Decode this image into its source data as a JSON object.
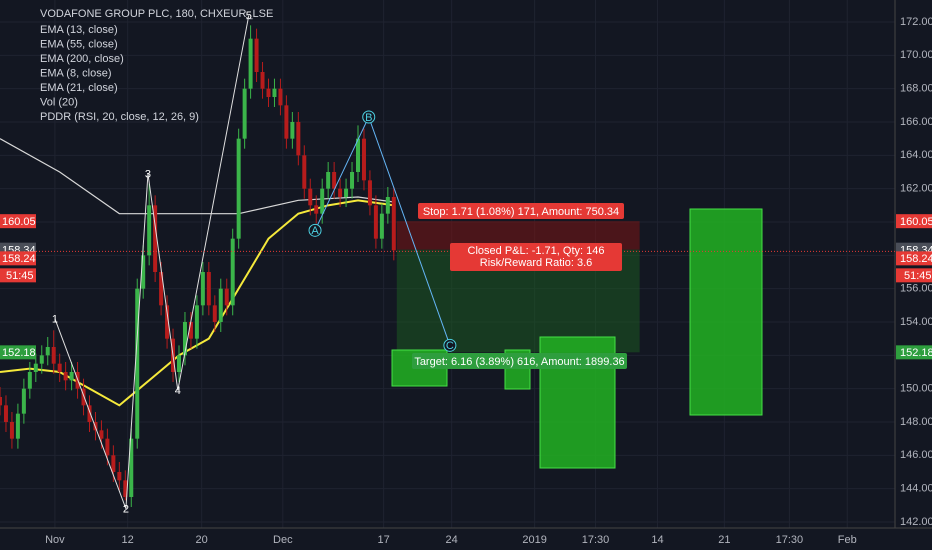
{
  "header": {
    "symbol": "VODAFONE GROUP PLC, 180, CHXEUR_LSE",
    "indicators": [
      "EMA (13, close)",
      "EMA (55, close)",
      "EMA (200, close)",
      "EMA (8, close)",
      "EMA (21, close)",
      "Vol (20)",
      "PDDR (RSI, 20, close, 12, 26, 9)"
    ]
  },
  "chart_data": {
    "type": "candlestick",
    "x": [
      0,
      1,
      2,
      3,
      4,
      5,
      6,
      7,
      8,
      9,
      10,
      11,
      12,
      13,
      14,
      15,
      16,
      17,
      18,
      19,
      20,
      21,
      22,
      23,
      24,
      25,
      26,
      27,
      28,
      29,
      30,
      31,
      32,
      33,
      34,
      35,
      36,
      37,
      38,
      39,
      40,
      41,
      42,
      43,
      44,
      45,
      46,
      47,
      48,
      49,
      50,
      51,
      52,
      53,
      54,
      55,
      56,
      57,
      58,
      59,
      60,
      61,
      62,
      63,
      64,
      65,
      66
    ],
    "open": [
      149.5,
      149,
      148,
      147,
      148.5,
      150,
      151,
      151.5,
      152,
      152.5,
      151.5,
      151,
      150.5,
      151,
      150,
      149,
      148,
      147.5,
      147,
      146,
      145,
      144.5,
      143.5,
      147,
      156,
      158,
      161,
      157,
      155,
      153,
      151,
      152,
      154,
      153,
      155,
      157,
      155,
      154,
      156,
      155,
      159,
      165,
      168,
      171,
      169,
      168,
      167.5,
      168,
      167,
      165,
      166,
      164,
      162,
      161,
      160.5,
      162,
      163,
      162,
      161.5,
      162,
      163,
      165,
      162.5,
      161,
      159,
      160.5,
      161.5
    ],
    "high": [
      150.1,
      149.6,
      148.6,
      149.1,
      150.6,
      151.6,
      152.1,
      152.6,
      153.1,
      153.5,
      152.1,
      151.6,
      151.6,
      151.6,
      150.6,
      149.6,
      148.6,
      148.1,
      147.6,
      146.6,
      145.6,
      145.1,
      147.6,
      156.6,
      158.6,
      162.3,
      161.6,
      157.6,
      155.6,
      153.6,
      152.6,
      154.6,
      154.6,
      155.6,
      157.6,
      157.6,
      155.6,
      156.6,
      156.6,
      159.6,
      165.6,
      168.6,
      171.8,
      171.6,
      169.6,
      168.6,
      168.6,
      168.6,
      167.6,
      166.6,
      166.6,
      164.6,
      162.6,
      161.6,
      162.6,
      163.6,
      163.6,
      162.6,
      162.6,
      163.6,
      165.8,
      165.6,
      163.1,
      161.6,
      161.1,
      162.1,
      162.1
    ],
    "low": [
      148.4,
      147.4,
      146.4,
      146.4,
      147.9,
      149.4,
      150.4,
      150.9,
      151.4,
      150.9,
      150.4,
      149.9,
      149.9,
      149.4,
      148.4,
      147.4,
      146.9,
      146.4,
      145.4,
      144.4,
      143.9,
      143.3,
      142.9,
      146.4,
      155.4,
      157.4,
      156.4,
      154.4,
      152.4,
      150.4,
      150.4,
      151.4,
      152.4,
      152.4,
      154.4,
      154.4,
      153.4,
      153.4,
      154.4,
      154.4,
      158.4,
      164.4,
      167.4,
      168.4,
      167.4,
      166.9,
      166.9,
      166.4,
      164.4,
      164.4,
      163.4,
      161.4,
      160.4,
      159.9,
      159.9,
      161.4,
      161.4,
      160.9,
      160.9,
      161.4,
      162.4,
      161.9,
      160.4,
      158.4,
      158.4,
      159.9,
      157.7
    ],
    "close": [
      149,
      148,
      147,
      148.5,
      150,
      151,
      151.5,
      152,
      152.5,
      151.5,
      151,
      150.5,
      151,
      150,
      149,
      148,
      147.5,
      147,
      146,
      145,
      144.5,
      143.5,
      147,
      156,
      158,
      161,
      157,
      155,
      153,
      151,
      152,
      154,
      153,
      155,
      157,
      155,
      154,
      156,
      155,
      159,
      165,
      168,
      171,
      169,
      168,
      167.5,
      168,
      167,
      165,
      166,
      164,
      162,
      161,
      160.5,
      162,
      163,
      162,
      161.5,
      162,
      163,
      165,
      162.5,
      161,
      159,
      160.5,
      161.5,
      158.3
    ],
    "up_color": "#3bb54a",
    "down_color": "#b71c1c",
    "lines": [
      {
        "color": "#f5e93b",
        "x": [
          0,
          5,
          10,
          15,
          20,
          25,
          30,
          35,
          40,
          45,
          50,
          55,
          60,
          66
        ],
        "values": [
          151,
          151.2,
          151,
          150,
          149,
          150.5,
          152,
          153,
          156,
          159,
          160.5,
          161,
          161.3,
          161
        ]
      },
      {
        "color": "#d8d8d8",
        "x": [
          0,
          10,
          20,
          30,
          40,
          50,
          60,
          66
        ],
        "values": [
          165,
          163,
          160.5,
          160.5,
          160.5,
          161.3,
          161.5,
          161.2
        ]
      }
    ],
    "xlim": [
      0,
      150
    ],
    "ylim": [
      141.64,
      173.32
    ],
    "yticks": [
      {
        "value": 142,
        "label": "142.00"
      },
      {
        "value": 144,
        "label": "144.00"
      },
      {
        "value": 146,
        "label": "146.00"
      },
      {
        "value": 148,
        "label": "148.00"
      },
      {
        "value": 150,
        "label": "150.00"
      },
      {
        "value": 152,
        "label": "152.00"
      },
      {
        "value": 154,
        "label": "154.00"
      },
      {
        "value": 156,
        "label": "156.00"
      },
      {
        "value": 158,
        "label": "158.00"
      },
      {
        "value": 160,
        "label": "160.00"
      },
      {
        "value": 162,
        "label": "162.00"
      },
      {
        "value": 164,
        "label": "164.00"
      },
      {
        "value": 166,
        "label": "166.00"
      },
      {
        "value": 168,
        "label": "168.00"
      },
      {
        "value": 170,
        "label": "170.00"
      },
      {
        "value": 172,
        "label": "172.00"
      }
    ],
    "xticks": [
      {
        "value": 9.2,
        "label": "Nov"
      },
      {
        "value": 21.4,
        "label": "12"
      },
      {
        "value": 33.8,
        "label": "20"
      },
      {
        "value": 47.4,
        "label": "Dec"
      },
      {
        "value": 64.3,
        "label": "17"
      },
      {
        "value": 75.7,
        "label": "24"
      },
      {
        "value": 89.6,
        "label": "2019"
      },
      {
        "value": 99.8,
        "label": "17:30"
      },
      {
        "value": 110.2,
        "label": "14"
      },
      {
        "value": 121.4,
        "label": "21"
      },
      {
        "value": 132.3,
        "label": "17:30"
      },
      {
        "value": 142,
        "label": "Feb"
      }
    ],
    "grid": true,
    "price_tags": [
      {
        "value": 160.05,
        "color": "#e53935"
      },
      {
        "value": 158.34,
        "color": "#4a4e58"
      },
      {
        "value": 158.24,
        "color": "#e53935"
      },
      {
        "value": 152.18,
        "color": "#2e9e3e"
      }
    ],
    "countdown": "51:45",
    "position": {
      "start": 66.5,
      "end": 107.2,
      "stop": 160.05,
      "entry": 158.34,
      "target": 152.18,
      "stop_label": "Stop: 1.71 (1.08%) 171, Amount: 750.34",
      "pnl_label": "Closed P&L: -1.71, Qty: 146",
      "rr_label": "Risk/Reward Ratio: 3.6",
      "target_label": "Target: 6.16 (3.89%) 616, Amount: 1899.36"
    },
    "waves": [
      {
        "label": "1",
        "x": 9.2,
        "y": 154.2
      },
      {
        "label": "2",
        "x": 21.1,
        "y": 142.8
      },
      {
        "label": "3",
        "x": 24.8,
        "y": 162.9
      },
      {
        "label": "4",
        "x": 29.8,
        "y": 149.9
      },
      {
        "label": "5",
        "x": 41.7,
        "y": 172.4
      },
      {
        "label": "A",
        "x": 52.8,
        "y": 159.5
      },
      {
        "label": "B",
        "x": 61.8,
        "y": 166.3
      },
      {
        "label": "C",
        "x": 75.4,
        "y": 152.6
      }
    ]
  }
}
